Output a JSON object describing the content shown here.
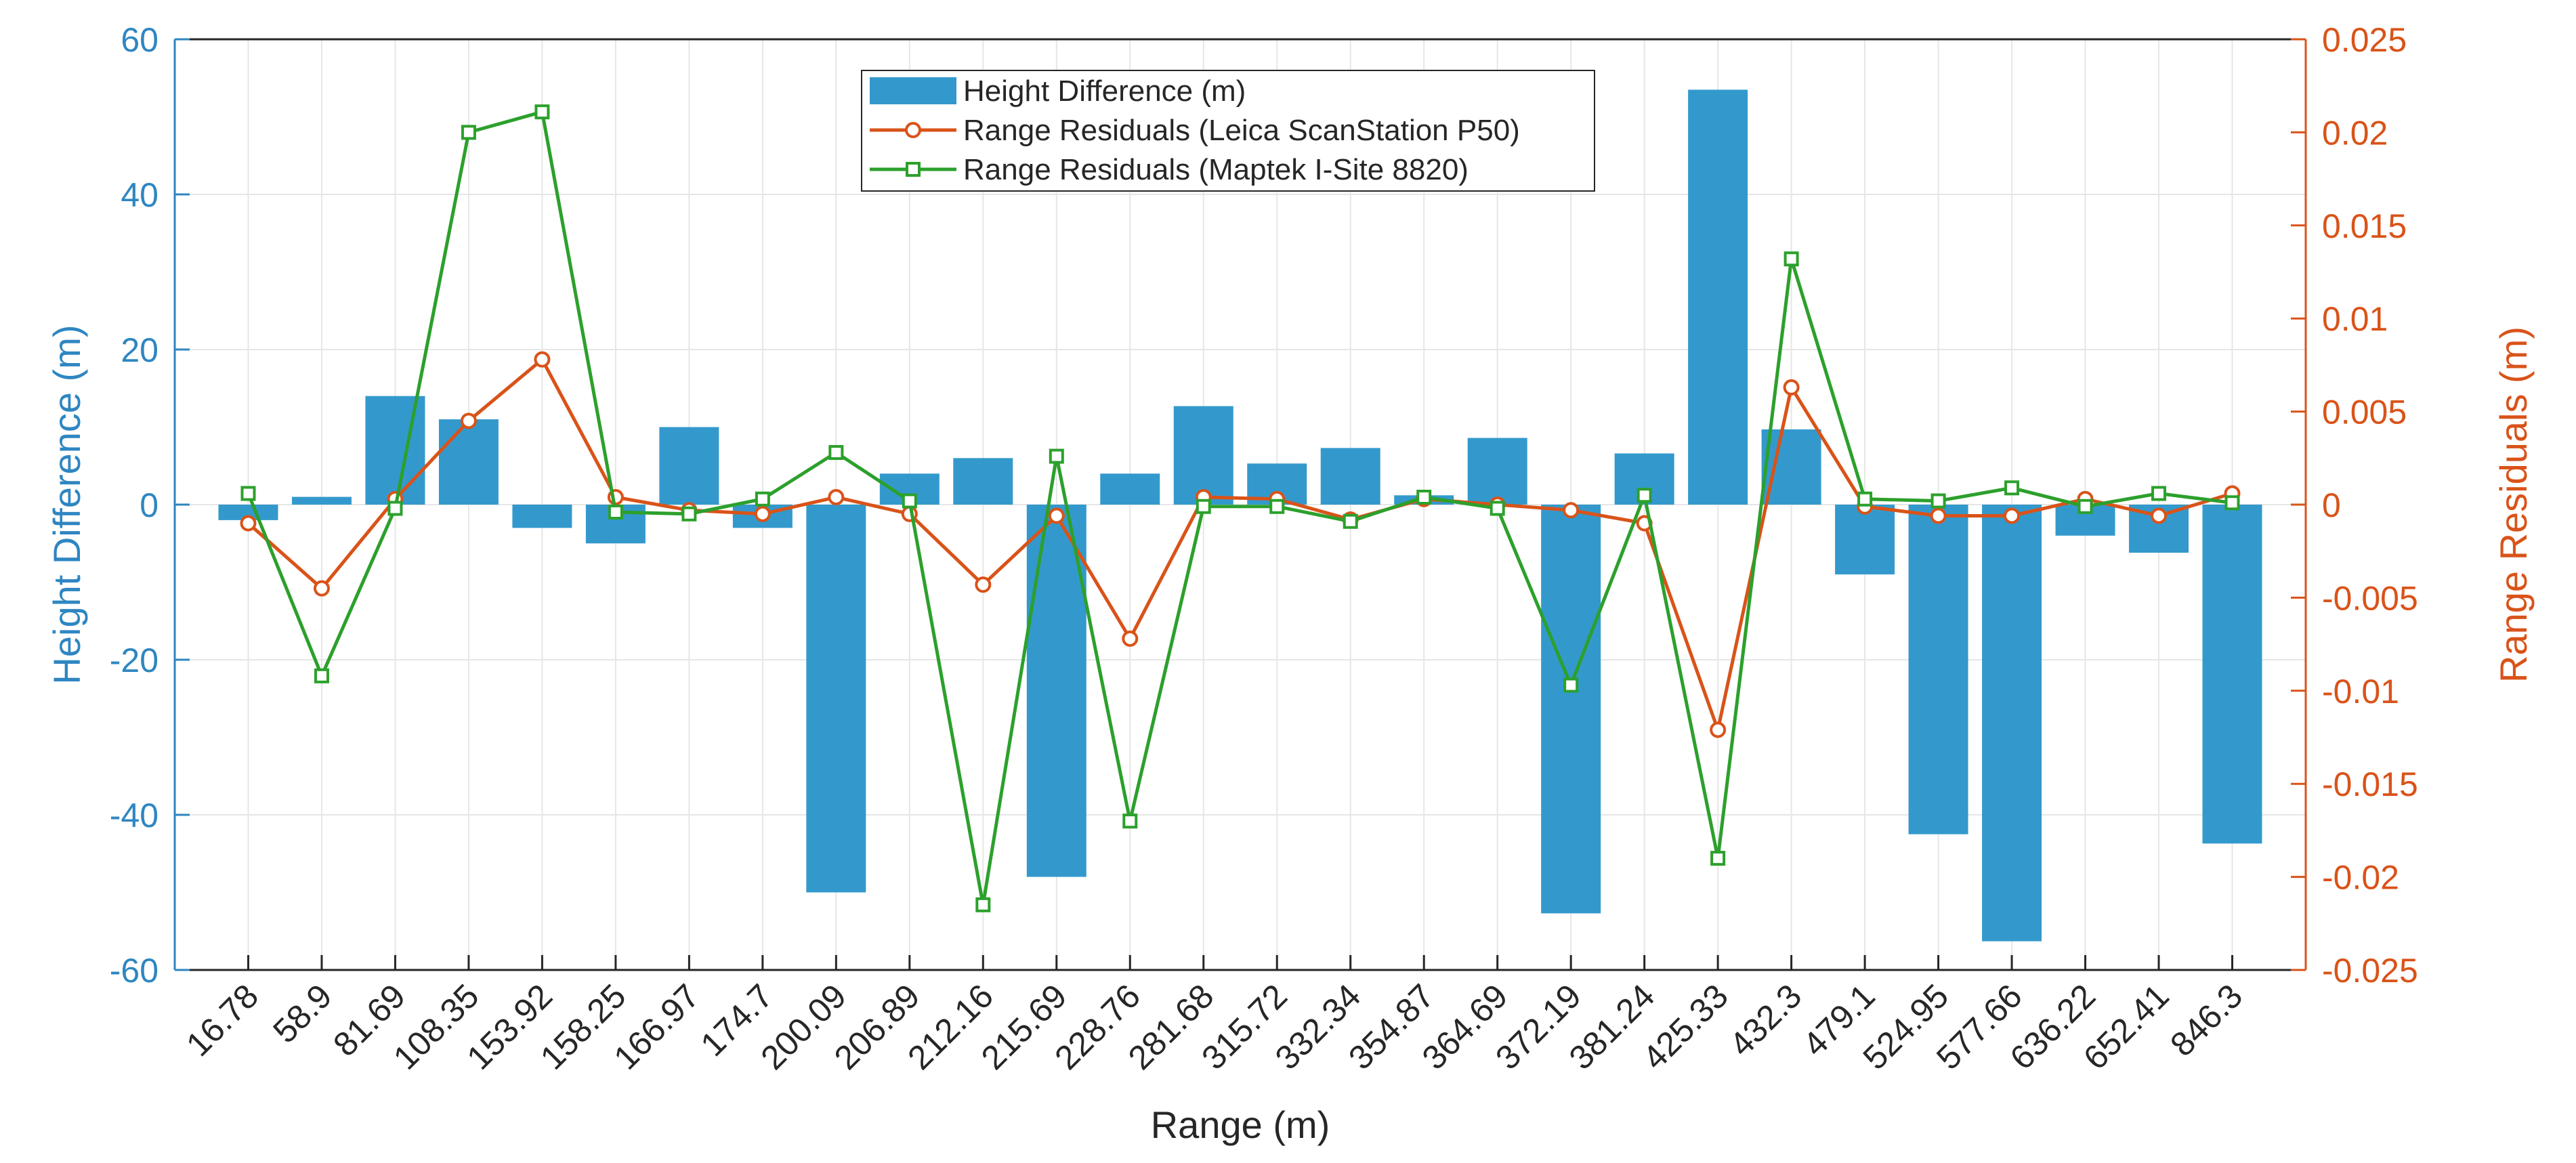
{
  "chart_data": {
    "type": "bar",
    "xlabel": "Range (m)",
    "ylabel_left": "Height Difference (m)",
    "ylabel_right": "Range Residuals (m)",
    "ylim_left": [
      -60,
      60
    ],
    "yticks_left": [
      "60",
      "40",
      "20",
      "0",
      "-20",
      "-40",
      "-60"
    ],
    "ylim_right": [
      -0.025,
      0.025
    ],
    "yticks_right": [
      "0.025",
      "0.02",
      "0.015",
      "0.01",
      "0.005",
      "0",
      "-0.005",
      "-0.01",
      "-0.015",
      "-0.02",
      "-0.025"
    ],
    "grid": true,
    "legend_position": "top-center",
    "categories": [
      "16.78",
      "58.9",
      "81.69",
      "108.35",
      "153.92",
      "158.25",
      "166.97",
      "174.7",
      "200.09",
      "206.89",
      "212.16",
      "215.69",
      "228.76",
      "281.68",
      "315.72",
      "332.34",
      "354.87",
      "364.69",
      "372.19",
      "381.24",
      "425.33",
      "432.3",
      "479.1",
      "524.95",
      "577.66",
      "636.22",
      "652.41",
      "846.3"
    ],
    "series": [
      {
        "name": "Height Difference (m)",
        "type": "bar",
        "axis": "left",
        "color": "#3399CC",
        "values": [
          -2,
          1,
          14,
          11,
          -3,
          -5,
          10,
          -3,
          -50,
          4,
          6,
          -48,
          4,
          12.7,
          5.3,
          7.3,
          1.2,
          8.6,
          -52.7,
          6.6,
          53.5,
          9.7,
          -9,
          -42.5,
          -56.3,
          -4,
          -6.2,
          -43.7
        ]
      },
      {
        "name": "Range Residuals (Leica ScanStation P50)",
        "type": "line",
        "axis": "right",
        "marker": "circle",
        "color": "#D95319",
        "values": [
          -0.001,
          -0.0045,
          0.0003,
          0.0045,
          0.0078,
          0.0004,
          -0.0003,
          -0.0005,
          0.0004,
          -0.0005,
          -0.0043,
          -0.0006,
          -0.0072,
          0.0004,
          0.0003,
          -0.0008,
          0.0003,
          0.0,
          -0.0003,
          -0.001,
          -0.0121,
          0.0063,
          -0.0001,
          -0.0006,
          -0.0006,
          0.0003,
          -0.0006,
          0.0006
        ]
      },
      {
        "name": "Range Residuals (Maptek I-Site 8820)",
        "type": "line",
        "axis": "right",
        "marker": "square",
        "color": "#2CA02C",
        "values": [
          0.0006,
          -0.0092,
          -0.0002,
          0.02,
          0.0211,
          -0.0004,
          -0.0005,
          0.0003,
          0.0028,
          0.0002,
          -0.0215,
          0.0026,
          -0.017,
          -0.0001,
          -0.0001,
          -0.0009,
          0.0004,
          -0.0002,
          -0.0097,
          0.0005,
          -0.019,
          0.0132,
          0.0003,
          0.0002,
          0.0009,
          -0.0001,
          0.0006,
          0.0001
        ]
      }
    ]
  }
}
